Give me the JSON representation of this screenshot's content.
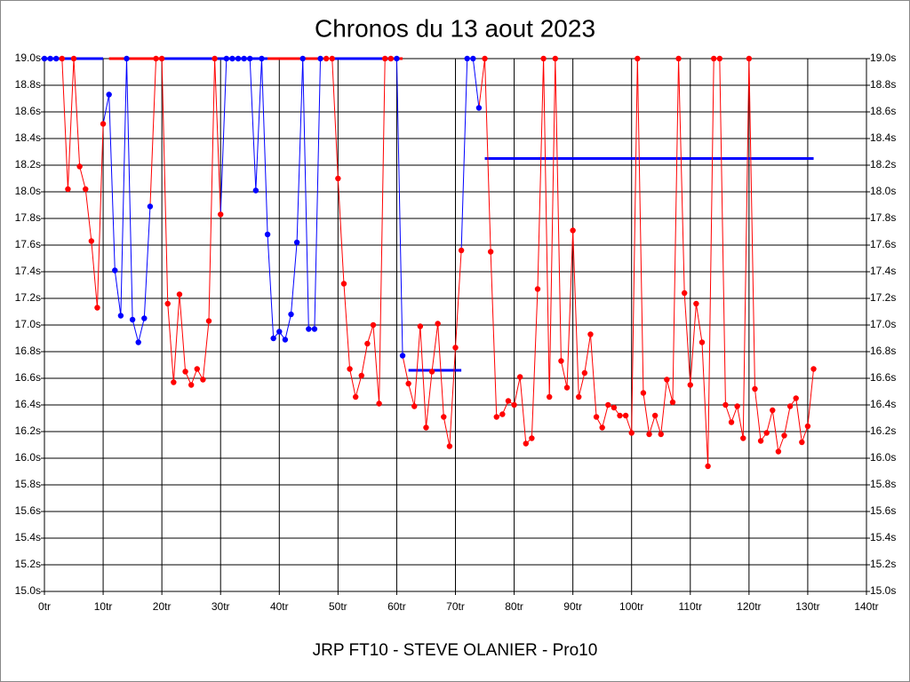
{
  "chart_data": {
    "type": "line",
    "title": "Chronos du 13 aout 2023",
    "xlabel": "JRP FT10 - STEVE OLANIER - Pro10",
    "x": [
      0,
      1,
      2,
      3,
      4,
      5,
      6,
      7,
      8,
      9,
      10,
      11,
      12,
      13,
      14,
      15,
      16,
      17,
      18,
      19,
      20,
      21,
      22,
      23,
      24,
      25,
      26,
      27,
      28,
      29,
      30,
      31,
      32,
      33,
      34,
      35,
      36,
      37,
      38,
      39,
      40,
      41,
      42,
      43,
      44,
      45,
      46,
      47,
      48,
      49,
      50,
      51,
      52,
      53,
      54,
      55,
      56,
      57,
      58,
      59,
      60,
      61,
      62,
      63,
      64,
      65,
      66,
      67,
      68,
      69,
      70,
      71,
      72,
      73,
      74,
      75,
      76,
      77,
      78,
      79,
      80,
      81,
      82,
      83,
      84,
      85,
      86,
      87,
      88,
      89,
      90,
      91,
      92,
      93,
      94,
      95,
      96,
      97,
      98,
      99,
      100,
      101,
      102,
      103,
      104,
      105,
      106,
      107,
      108,
      109,
      110,
      111,
      112,
      113,
      114,
      115,
      116,
      117,
      118,
      119,
      120,
      121,
      122,
      123,
      124,
      125,
      126,
      127,
      128,
      129,
      130,
      131
    ],
    "values": [
      19,
      19,
      19,
      19,
      18.02,
      19,
      18.19,
      18.02,
      17.63,
      17.13,
      18.51,
      18.73,
      17.41,
      17.07,
      19,
      17.04,
      16.87,
      17.05,
      17.89,
      19,
      19,
      17.16,
      16.57,
      17.23,
      16.65,
      16.55,
      16.67,
      16.59,
      17.03,
      19,
      17.83,
      19,
      19,
      19,
      19,
      19,
      18.01,
      19,
      17.68,
      16.9,
      16.95,
      16.89,
      17.08,
      17.62,
      19,
      16.97,
      16.97,
      19,
      19,
      19,
      18.1,
      17.31,
      16.67,
      16.46,
      16.62,
      16.86,
      17.0,
      16.41,
      19,
      19,
      19,
      16.77,
      16.56,
      16.39,
      16.99,
      16.23,
      16.65,
      17.01,
      16.31,
      16.09,
      16.83,
      17.56,
      19,
      19,
      18.63,
      19,
      17.55,
      16.31,
      16.33,
      16.43,
      16.4,
      16.61,
      16.11,
      16.15,
      17.27,
      19,
      16.46,
      19,
      16.73,
      16.53,
      17.71,
      16.46,
      16.64,
      16.93,
      16.31,
      16.23,
      16.4,
      16.38,
      16.32,
      16.32,
      16.19,
      19,
      16.49,
      16.18,
      16.32,
      16.18,
      16.59,
      16.42,
      19,
      17.24,
      16.55,
      17.16,
      16.87,
      15.94,
      19,
      19,
      16.4,
      16.27,
      16.39,
      16.15,
      19,
      16.52,
      16.13,
      16.19,
      16.36,
      16.05,
      16.17,
      16.39,
      16.45,
      16.12,
      16.24,
      16.67
    ],
    "colors": [
      "#0000ff",
      "#0000ff",
      "#0000ff",
      "#ff0000",
      "#ff0000",
      "#ff0000",
      "#ff0000",
      "#ff0000",
      "#ff0000",
      "#ff0000",
      "#ff0000",
      "#0000ff",
      "#0000ff",
      "#0000ff",
      "#0000ff",
      "#0000ff",
      "#0000ff",
      "#0000ff",
      "#0000ff",
      "#ff0000",
      "#ff0000",
      "#ff0000",
      "#ff0000",
      "#ff0000",
      "#ff0000",
      "#ff0000",
      "#ff0000",
      "#ff0000",
      "#ff0000",
      "#ff0000",
      "#ff0000",
      "#0000ff",
      "#0000ff",
      "#0000ff",
      "#0000ff",
      "#0000ff",
      "#0000ff",
      "#0000ff",
      "#0000ff",
      "#0000ff",
      "#0000ff",
      "#0000ff",
      "#0000ff",
      "#0000ff",
      "#0000ff",
      "#0000ff",
      "#0000ff",
      "#0000ff",
      "#ff0000",
      "#ff0000",
      "#ff0000",
      "#ff0000",
      "#ff0000",
      "#ff0000",
      "#ff0000",
      "#ff0000",
      "#ff0000",
      "#ff0000",
      "#ff0000",
      "#ff0000",
      "#0000ff",
      "#0000ff",
      "#ff0000",
      "#ff0000",
      "#ff0000",
      "#ff0000",
      "#ff0000",
      "#ff0000",
      "#ff0000",
      "#ff0000",
      "#ff0000",
      "#ff0000",
      "#0000ff",
      "#0000ff",
      "#0000ff",
      "#ff0000",
      "#ff0000",
      "#ff0000",
      "#ff0000",
      "#ff0000",
      "#ff0000",
      "#ff0000",
      "#ff0000",
      "#ff0000",
      "#ff0000",
      "#ff0000",
      "#ff0000",
      "#ff0000",
      "#ff0000",
      "#ff0000",
      "#ff0000",
      "#ff0000",
      "#ff0000",
      "#ff0000",
      "#ff0000",
      "#ff0000",
      "#ff0000",
      "#ff0000",
      "#ff0000",
      "#ff0000",
      "#ff0000",
      "#ff0000",
      "#ff0000",
      "#ff0000",
      "#ff0000",
      "#ff0000",
      "#ff0000",
      "#ff0000",
      "#ff0000",
      "#ff0000",
      "#ff0000",
      "#ff0000",
      "#ff0000",
      "#ff0000",
      "#ff0000",
      "#ff0000",
      "#ff0000",
      "#ff0000",
      "#ff0000",
      "#ff0000",
      "#ff0000",
      "#ff0000",
      "#ff0000",
      "#ff0000",
      "#ff0000",
      "#ff0000",
      "#ff0000",
      "#ff0000",
      "#ff0000",
      "#ff0000",
      "#ff0000",
      "#ff0000"
    ],
    "hlines": [
      {
        "y": 19,
        "x": [
          0,
          10
        ],
        "color": "#0000ff"
      },
      {
        "y": 19,
        "x": [
          11,
          20
        ],
        "color": "#ff0000"
      },
      {
        "y": 19,
        "x": [
          20,
          38
        ],
        "color": "#0000ff"
      },
      {
        "y": 19,
        "x": [
          38,
          47.5
        ],
        "color": "#ff0000"
      },
      {
        "y": 19,
        "x": [
          49,
          59
        ],
        "color": "#0000ff"
      },
      {
        "y": 19,
        "x": [
          59,
          61
        ],
        "color": "#ff0000"
      },
      {
        "y": 16.66,
        "x": [
          62,
          71
        ],
        "color": "#0000ff"
      },
      {
        "y": 18.25,
        "x": [
          75,
          131
        ],
        "color": "#0000ff"
      }
    ],
    "xlim": [
      0,
      140
    ],
    "xticks": [
      {
        "value": 0,
        "label": "0tr"
      },
      {
        "value": 10,
        "label": "10tr"
      },
      {
        "value": 20,
        "label": "20tr"
      },
      {
        "value": 30,
        "label": "30tr"
      },
      {
        "value": 40,
        "label": "40tr"
      },
      {
        "value": 50,
        "label": "50tr"
      },
      {
        "value": 60,
        "label": "60tr"
      },
      {
        "value": 70,
        "label": "70tr"
      },
      {
        "value": 80,
        "label": "80tr"
      },
      {
        "value": 90,
        "label": "90tr"
      },
      {
        "value": 100,
        "label": "100tr"
      },
      {
        "value": 110,
        "label": "110tr"
      },
      {
        "value": 120,
        "label": "120tr"
      },
      {
        "value": 130,
        "label": "130tr"
      },
      {
        "value": 140,
        "label": "140tr"
      }
    ],
    "ylim": [
      15,
      19
    ],
    "yticks": [
      {
        "value": 15,
        "label": "15.0s"
      },
      {
        "value": 15.2,
        "label": "15.2s"
      },
      {
        "value": 15.4,
        "label": "15.4s"
      },
      {
        "value": 15.6,
        "label": "15.6s"
      },
      {
        "value": 15.8,
        "label": "15.8s"
      },
      {
        "value": 16,
        "label": "16.0s"
      },
      {
        "value": 16.2,
        "label": "16.2s"
      },
      {
        "value": 16.4,
        "label": "16.4s"
      },
      {
        "value": 16.6,
        "label": "16.6s"
      },
      {
        "value": 16.8,
        "label": "16.8s"
      },
      {
        "value": 17,
        "label": "17.0s"
      },
      {
        "value": 17.2,
        "label": "17.2s"
      },
      {
        "value": 17.4,
        "label": "17.4s"
      },
      {
        "value": 17.6,
        "label": "17.6s"
      },
      {
        "value": 17.8,
        "label": "17.8s"
      },
      {
        "value": 18,
        "label": "18.0s"
      },
      {
        "value": 18.2,
        "label": "18.2s"
      },
      {
        "value": 18.4,
        "label": "18.4s"
      },
      {
        "value": 18.6,
        "label": "18.6s"
      },
      {
        "value": 18.8,
        "label": "18.8s"
      },
      {
        "value": 19,
        "label": "19.0s"
      }
    ],
    "grid": true
  }
}
